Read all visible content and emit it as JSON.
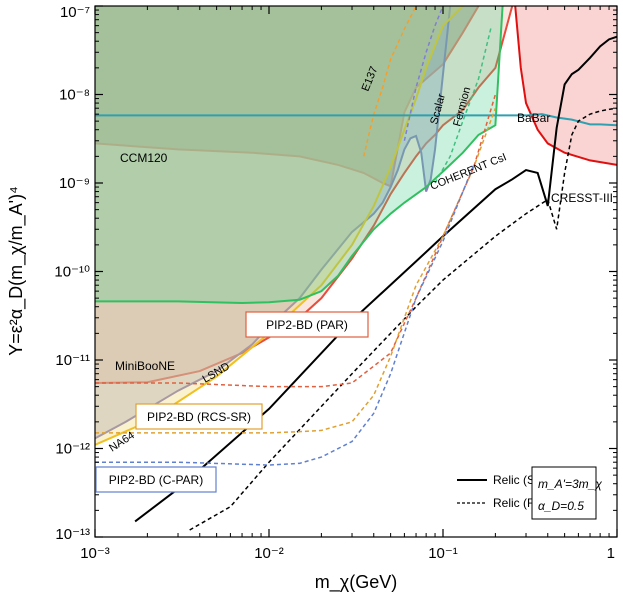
{
  "chart_data": {
    "type": "line",
    "xscale": "log",
    "yscale": "log",
    "xlim": [
      0.001,
      1
    ],
    "ylim": [
      1e-13,
      1e-07
    ],
    "xlabel": "m_χ(GeV)",
    "ylabel": "Y=ε²α_D(m_χ/m_A')⁴",
    "x_ticks": [
      {
        "value": 0.001,
        "label": "10⁻³"
      },
      {
        "value": 0.01,
        "label": "10⁻²"
      },
      {
        "value": 0.1,
        "label": "10⁻¹"
      },
      {
        "value": 1,
        "label": "1"
      }
    ],
    "y_ticks": [
      {
        "value": 1e-13,
        "label": "10⁻¹³"
      },
      {
        "value": 1e-12,
        "label": "10⁻¹²"
      },
      {
        "value": 1e-11,
        "label": "10⁻¹¹"
      },
      {
        "value": 1e-10,
        "label": "10⁻¹⁰"
      },
      {
        "value": 1e-09,
        "label": "10⁻⁹"
      },
      {
        "value": 1e-08,
        "label": "10⁻⁸"
      },
      {
        "value": 1e-07,
        "label": "10⁻⁷"
      }
    ],
    "regions": [
      {
        "name": "CCM120",
        "color": "#e8685a",
        "fill": "#8f8f80",
        "opacity": 0.55,
        "points": [
          [
            0.001,
            2.8e-09
          ],
          [
            0.003,
            2.4e-09
          ],
          [
            0.008,
            2.2e-09
          ],
          [
            0.015,
            2e-09
          ],
          [
            0.025,
            1.6e-09
          ],
          [
            0.035,
            1.3e-09
          ],
          [
            0.045,
            1e-09
          ],
          [
            0.05,
            9.2e-10
          ],
          [
            0.06,
            6.3e-09
          ],
          [
            0.07,
            1.2e-08
          ],
          [
            0.1,
            2.2e-08
          ],
          [
            0.13,
            5e-08
          ],
          [
            0.16,
            1e-07
          ]
        ]
      },
      {
        "name": "MiniBooNE",
        "color": "#e84c3d",
        "fill": "#e89a80",
        "opacity": 0.25,
        "points": [
          [
            0.001,
            5.5e-12
          ],
          [
            0.002,
            5.6e-12
          ],
          [
            0.004,
            7.5e-12
          ],
          [
            0.007,
            1.2e-11
          ],
          [
            0.01,
            1.8e-11
          ],
          [
            0.015,
            3e-11
          ],
          [
            0.02,
            5e-11
          ],
          [
            0.03,
            1.4e-10
          ],
          [
            0.04,
            3.3e-10
          ],
          [
            0.05,
            7.5e-10
          ],
          [
            0.06,
            1.3e-09
          ],
          [
            0.07,
            2e-09
          ],
          [
            0.08,
            2.8e-09
          ],
          [
            0.09,
            3.5e-09
          ],
          [
            0.1,
            4.5e-09
          ],
          [
            0.13,
            6.7e-09
          ],
          [
            0.16,
            1.2e-08
          ],
          [
            0.2,
            2e-08
          ],
          [
            0.25,
            1e-07
          ]
        ]
      },
      {
        "name": "LSND",
        "color": "#8a80c0",
        "fill": "#a8a8d8",
        "opacity": 0.45,
        "points": [
          [
            0.001,
            1.3e-12
          ],
          [
            0.0015,
            2e-12
          ],
          [
            0.002,
            2.8e-12
          ],
          [
            0.003,
            4.5e-12
          ],
          [
            0.005,
            7.5e-12
          ],
          [
            0.008,
            1.5e-11
          ],
          [
            0.01,
            2.4e-11
          ],
          [
            0.015,
            5e-11
          ],
          [
            0.02,
            1.05e-10
          ],
          [
            0.025,
            1.8e-10
          ],
          [
            0.03,
            2.8e-10
          ],
          [
            0.035,
            3.6e-10
          ],
          [
            0.04,
            4.5e-10
          ],
          [
            0.045,
            6e-10
          ],
          [
            0.05,
            9e-10
          ],
          [
            0.055,
            1.4e-09
          ],
          [
            0.06,
            2.4e-09
          ],
          [
            0.065,
            3.2e-09
          ],
          [
            0.07,
            3.4e-09
          ],
          [
            0.075,
            2.2e-09
          ],
          [
            0.08,
            8e-10
          ],
          [
            0.085,
            1.1e-09
          ],
          [
            0.09,
            2.4e-09
          ],
          [
            0.11,
            1e-07
          ]
        ]
      },
      {
        "name": "NA64",
        "color": "#f0c020",
        "fill": "#f0d060",
        "opacity": 0.3,
        "points": [
          [
            0.001,
            1.1e-12
          ],
          [
            0.002,
            2e-12
          ],
          [
            0.005,
            6.5e-12
          ],
          [
            0.01,
            2e-11
          ],
          [
            0.02,
            7e-11
          ],
          [
            0.03,
            2e-10
          ],
          [
            0.04,
            5.5e-10
          ],
          [
            0.05,
            1.5e-09
          ],
          [
            0.06,
            4e-09
          ],
          [
            0.07,
            9e-09
          ],
          [
            0.08,
            2e-08
          ],
          [
            0.1,
            6e-08
          ],
          [
            0.13,
            1e-07
          ]
        ]
      },
      {
        "name": "COHERENT CsI",
        "color": "#30c060",
        "fill": "#50d090",
        "opacity": 0.3,
        "points": [
          [
            0.001,
            4.6e-11
          ],
          [
            0.003,
            4.6e-11
          ],
          [
            0.007,
            4.4e-11
          ],
          [
            0.01,
            4.5e-11
          ],
          [
            0.015,
            4.8e-11
          ],
          [
            0.02,
            6e-11
          ],
          [
            0.025,
            9e-11
          ],
          [
            0.03,
            1.5e-10
          ],
          [
            0.04,
            3e-10
          ],
          [
            0.05,
            4.5e-10
          ],
          [
            0.06,
            6e-10
          ],
          [
            0.08,
            9e-10
          ],
          [
            0.1,
            1.35e-09
          ],
          [
            0.13,
            2.2e-09
          ],
          [
            0.16,
            3.5e-09
          ],
          [
            0.2,
            4.5e-09
          ],
          [
            0.22,
            1e-07
          ]
        ]
      },
      {
        "name": "CRESST-III",
        "color": "#e01010",
        "fill": "#f08080",
        "opacity": 0.35,
        "points": [
          [
            0.26,
            1e-07
          ],
          [
            0.28,
            2e-08
          ],
          [
            0.3,
            8e-09
          ],
          [
            0.35,
            4e-09
          ],
          [
            0.4,
            2.8e-09
          ],
          [
            0.5,
            2.2e-09
          ],
          [
            0.7,
            1.8e-09
          ],
          [
            1,
            1.6e-09
          ]
        ]
      }
    ],
    "series": [
      {
        "name": "Scalar",
        "style": "dashed",
        "color": "#8080d0",
        "x": [
          0.06,
          0.07,
          0.08,
          0.09,
          0.1
        ],
        "y": [
          3e-09,
          1.2e-08,
          3e-08,
          6e-08,
          1e-07
        ]
      },
      {
        "name": "Fermion",
        "style": "dashed",
        "color": "#40c080",
        "x": [
          0.09,
          0.11,
          0.13,
          0.16,
          0.19
        ],
        "y": [
          1e-09,
          2e-09,
          5e-09,
          1.5e-08,
          6e-08
        ]
      },
      {
        "name": "E137",
        "style": "dashed",
        "color": "#f0a030",
        "x": [
          0.035,
          0.04,
          0.045,
          0.05,
          0.06,
          0.07
        ],
        "y": [
          2e-09,
          6e-09,
          1.2e-08,
          2.5e-08,
          5.5e-08,
          1e-07
        ]
      },
      {
        "name": "BaBar",
        "style": "solid",
        "color": "#30a0b0",
        "x": [
          0.001,
          0.3,
          0.37,
          0.45,
          0.55,
          0.7,
          0.8,
          1
        ],
        "y": [
          5.8e-09,
          5.8e-09,
          6e-09,
          5.5e-09,
          5.2e-09,
          4.6e-09,
          4.6e-09,
          4.5e-09
        ]
      },
      {
        "name": "Relic (Scalar)",
        "style": "solid",
        "color": "#000000",
        "x": [
          0.0017,
          0.003,
          0.01,
          0.03,
          0.07,
          0.1,
          0.2,
          0.25,
          0.3,
          0.35,
          0.4,
          0.45,
          0.5,
          0.55,
          0.6,
          0.7,
          0.8,
          0.9,
          1
        ],
        "y": [
          1.5e-13,
          3.5e-13,
          2.8e-12,
          2.8e-11,
          1.3e-10,
          2.5e-10,
          8.5e-10,
          1.1e-09,
          1.4e-09,
          1.3e-09,
          5.5e-10,
          4.2e-09,
          1.3e-08,
          1.7e-08,
          1.9e-08,
          2.6e-08,
          3.5e-08,
          4.2e-08,
          4.5e-08
        ]
      },
      {
        "name": "Relic (Fermion)",
        "style": "dashed",
        "color": "#000000",
        "x": [
          0.0035,
          0.006,
          0.01,
          0.03,
          0.07,
          0.1,
          0.2,
          0.3,
          0.4,
          0.45,
          0.5,
          0.55,
          0.6,
          0.7,
          0.8,
          0.9,
          1
        ],
        "y": [
          1.2e-13,
          2.2e-13,
          7e-13,
          7e-12,
          4e-11,
          8e-11,
          2.5e-10,
          4.5e-10,
          6.5e-10,
          3e-10,
          1.3e-09,
          3.5e-09,
          5e-09,
          6e-09,
          6.5e-09,
          6.8e-09,
          7e-09
        ]
      },
      {
        "name": "PIP2-BD (PAR)",
        "style": "dashed",
        "color": "#e06040",
        "x": [
          0.001,
          0.003,
          0.01,
          0.02,
          0.03,
          0.05,
          0.07,
          0.1,
          0.15,
          0.2
        ],
        "y": [
          5.5e-12,
          5.5e-12,
          5e-12,
          5e-12,
          5.5e-12,
          1.2e-11,
          5e-11,
          2.5e-10,
          1.5e-09,
          1e-08
        ]
      },
      {
        "name": "PIP2-BD (RCS-SR)",
        "style": "dashed",
        "color": "#e0a030",
        "x": [
          0.001,
          0.003,
          0.01,
          0.015,
          0.02,
          0.03,
          0.04,
          0.05,
          0.07,
          0.1,
          0.15,
          0.2
        ],
        "y": [
          1.5e-12,
          1.5e-12,
          1.5e-12,
          1.55e-12,
          1.6e-12,
          2e-12,
          4e-12,
          1.1e-11,
          7e-11,
          2.5e-10,
          1.5e-09,
          7e-09
        ]
      },
      {
        "name": "PIP2-BD (C-PAR)",
        "style": "dashed",
        "color": "#6080d0",
        "x": [
          0.001,
          0.003,
          0.01,
          0.015,
          0.02,
          0.03,
          0.04,
          0.05,
          0.07,
          0.1,
          0.15
        ],
        "y": [
          7e-13,
          7e-13,
          6.5e-13,
          6.8e-13,
          8e-13,
          1.2e-12,
          2.5e-12,
          7e-12,
          5e-11,
          2.2e-10,
          1.6e-09
        ]
      }
    ],
    "annotations": [
      {
        "text": "CCM120",
        "color": "#b03020"
      },
      {
        "text": "MiniBooNE",
        "color": "#b03020"
      },
      {
        "text": "LSND",
        "color": "#6060a0"
      },
      {
        "text": "NA64",
        "color": "#606040"
      },
      {
        "text": "E137",
        "color": "#c08020"
      },
      {
        "text": "Scalar",
        "color": "#6070a0"
      },
      {
        "text": "Fermion",
        "color": "#408060"
      },
      {
        "text": "BaBar",
        "color": "#2080a0"
      },
      {
        "text": "COHERENT CsI",
        "color": "#309050"
      },
      {
        "text": "CRESST-III",
        "color": "#b02020"
      }
    ],
    "boxed_labels": [
      {
        "text": "PIP2-BD (PAR)",
        "color": "#e06040"
      },
      {
        "text": "PIP2-BD (RCS-SR)",
        "color": "#e0a030"
      },
      {
        "text": "PIP2-BD (C-PAR)",
        "color": "#6080d0"
      }
    ],
    "legend": {
      "position": "bottom-right",
      "entries": [
        {
          "label": "Relic (Scalar)",
          "style": "solid"
        },
        {
          "label": "Relic (Fermion)",
          "style": "dashed"
        }
      ],
      "params": [
        "m_A'=3m_χ",
        "α_D=0.5"
      ]
    }
  }
}
